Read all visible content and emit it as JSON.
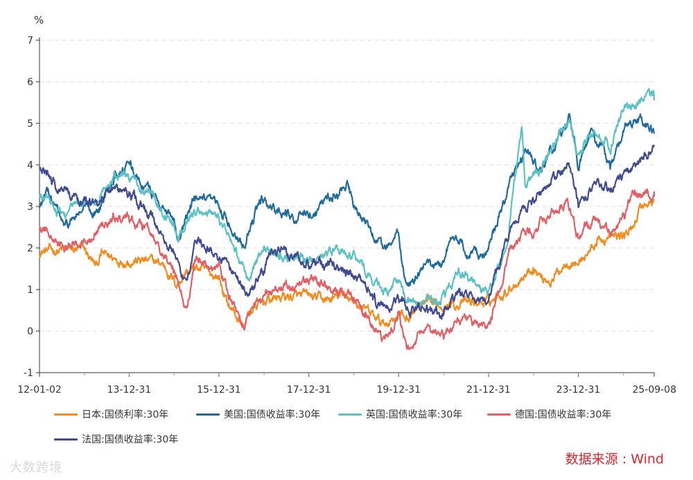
{
  "chart_data": {
    "type": "line",
    "ylabel": "%",
    "ylim": [
      -1,
      7
    ],
    "yticks": [
      "-1",
      "0",
      "1",
      "2",
      "3",
      "4",
      "5",
      "6",
      "7"
    ],
    "xlim": [
      "2012-01-02",
      "2025-09-08"
    ],
    "xticks": [
      {
        "label": "12-01-02",
        "date": "2012-01-02"
      },
      {
        "label": "13-12-31",
        "date": "2013-12-31"
      },
      {
        "label": "15-12-31",
        "date": "2015-12-31"
      },
      {
        "label": "17-12-31",
        "date": "2017-12-31"
      },
      {
        "label": "19-12-31",
        "date": "2019-12-31"
      },
      {
        "label": "21-12-31",
        "date": "2021-12-31"
      },
      {
        "label": "23-12-31",
        "date": "2023-12-31"
      },
      {
        "label": "25-09-08",
        "date": "2025-09-08"
      }
    ],
    "grid": true,
    "legend_position": "bottom",
    "source": "数据来源 : Wind",
    "series": [
      {
        "name": "日本:国债利率:30年",
        "color": "#f28c1e",
        "points": [
          [
            "2012-01-02",
            1.92
          ],
          [
            "2012-07-01",
            1.95
          ],
          [
            "2013-01-01",
            1.95
          ],
          [
            "2013-04-05",
            1.55
          ],
          [
            "2013-05-20",
            1.85
          ],
          [
            "2013-10-01",
            1.72
          ],
          [
            "2014-04-01",
            1.7
          ],
          [
            "2014-10-01",
            1.62
          ],
          [
            "2015-01-20",
            1.12
          ],
          [
            "2015-04-01",
            1.42
          ],
          [
            "2015-07-01",
            1.52
          ],
          [
            "2015-12-31",
            1.3
          ],
          [
            "2016-03-01",
            0.72
          ],
          [
            "2016-07-20",
            0.1
          ],
          [
            "2016-09-01",
            0.45
          ],
          [
            "2016-12-31",
            0.72
          ],
          [
            "2017-06-01",
            0.83
          ],
          [
            "2018-01-01",
            0.82
          ],
          [
            "2018-06-01",
            0.73
          ],
          [
            "2018-11-01",
            0.88
          ],
          [
            "2019-03-01",
            0.58
          ],
          [
            "2019-08-30",
            0.15
          ],
          [
            "2019-12-31",
            0.42
          ],
          [
            "2020-03-15",
            0.3
          ],
          [
            "2020-06-01",
            0.58
          ],
          [
            "2020-12-31",
            0.65
          ],
          [
            "2021-06-01",
            0.67
          ],
          [
            "2021-12-31",
            0.7
          ],
          [
            "2022-06-01",
            1.0
          ],
          [
            "2022-12-31",
            1.55
          ],
          [
            "2023-03-01",
            1.3
          ],
          [
            "2023-06-01",
            1.22
          ],
          [
            "2023-10-01",
            1.72
          ],
          [
            "2023-12-31",
            1.64
          ],
          [
            "2024-06-01",
            2.15
          ],
          [
            "2024-12-31",
            2.3
          ],
          [
            "2025-03-01",
            2.4
          ],
          [
            "2025-05-20",
            3.0
          ],
          [
            "2025-09-08",
            3.14
          ]
        ]
      },
      {
        "name": "美国:国债收益率:30年",
        "color": "#1f6c9c",
        "points": [
          [
            "2012-01-02",
            2.98
          ],
          [
            "2012-03-15",
            3.35
          ],
          [
            "2012-07-25",
            2.48
          ],
          [
            "2012-12-31",
            2.95
          ],
          [
            "2013-05-01",
            2.88
          ],
          [
            "2013-09-01",
            3.82
          ],
          [
            "2013-12-31",
            3.95
          ],
          [
            "2014-06-01",
            3.4
          ],
          [
            "2014-12-31",
            2.75
          ],
          [
            "2015-02-01",
            2.25
          ],
          [
            "2015-06-15",
            3.15
          ],
          [
            "2015-12-31",
            2.98
          ],
          [
            "2016-07-08",
            2.11
          ],
          [
            "2016-12-15",
            3.15
          ],
          [
            "2017-06-01",
            2.85
          ],
          [
            "2017-09-01",
            2.75
          ],
          [
            "2017-12-31",
            2.75
          ],
          [
            "2018-05-15",
            3.2
          ],
          [
            "2018-11-08",
            3.45
          ],
          [
            "2018-12-31",
            3.0
          ],
          [
            "2019-08-28",
            1.95
          ],
          [
            "2019-12-31",
            2.3
          ],
          [
            "2020-03-09",
            0.99
          ],
          [
            "2020-06-01",
            1.45
          ],
          [
            "2020-12-31",
            1.65
          ],
          [
            "2021-03-15",
            2.45
          ],
          [
            "2021-07-15",
            1.85
          ],
          [
            "2021-12-31",
            1.9
          ],
          [
            "2022-05-01",
            3.1
          ],
          [
            "2022-10-24",
            4.35
          ],
          [
            "2023-03-01",
            3.8
          ],
          [
            "2023-10-20",
            5.1
          ],
          [
            "2023-12-31",
            4.02
          ],
          [
            "2024-04-25",
            4.8
          ],
          [
            "2024-09-15",
            3.95
          ],
          [
            "2025-01-15",
            4.95
          ],
          [
            "2025-05-20",
            5.05
          ],
          [
            "2025-09-08",
            4.75
          ]
        ]
      },
      {
        "name": "英国:国债收益率:30年",
        "color": "#5cc1c3",
        "points": [
          [
            "2012-01-02",
            3.25
          ],
          [
            "2012-07-25",
            2.82
          ],
          [
            "2012-12-31",
            3.15
          ],
          [
            "2013-04-01",
            3.05
          ],
          [
            "2013-09-01",
            3.78
          ],
          [
            "2013-12-31",
            3.62
          ],
          [
            "2014-06-01",
            3.45
          ],
          [
            "2014-12-31",
            2.55
          ],
          [
            "2015-02-01",
            2.15
          ],
          [
            "2015-06-15",
            2.95
          ],
          [
            "2015-12-31",
            2.72
          ],
          [
            "2016-08-12",
            1.3
          ],
          [
            "2016-12-31",
            1.95
          ],
          [
            "2017-06-01",
            1.85
          ],
          [
            "2017-12-31",
            1.7
          ],
          [
            "2018-10-01",
            1.95
          ],
          [
            "2018-12-31",
            1.75
          ],
          [
            "2019-08-28",
            0.95
          ],
          [
            "2019-12-31",
            1.2
          ],
          [
            "2020-03-09",
            0.58
          ],
          [
            "2020-06-01",
            0.65
          ],
          [
            "2020-12-31",
            0.82
          ],
          [
            "2021-05-01",
            1.35
          ],
          [
            "2021-12-31",
            1.0
          ],
          [
            "2022-06-01",
            2.1
          ],
          [
            "2022-09-27",
            5.0
          ],
          [
            "2022-10-25",
            3.4
          ],
          [
            "2022-12-31",
            3.8
          ],
          [
            "2023-03-01",
            3.9
          ],
          [
            "2023-10-20",
            5.1
          ],
          [
            "2023-12-31",
            4.25
          ],
          [
            "2024-05-01",
            4.78
          ],
          [
            "2024-09-15",
            4.45
          ],
          [
            "2025-01-15",
            5.4
          ],
          [
            "2025-05-20",
            5.45
          ],
          [
            "2025-09-01",
            5.68
          ],
          [
            "2025-09-08",
            5.55
          ]
        ]
      },
      {
        "name": "德国:国债收益率:30年",
        "color": "#e06066",
        "points": [
          [
            "2012-01-02",
            2.5
          ],
          [
            "2012-07-25",
            1.92
          ],
          [
            "2012-12-31",
            2.25
          ],
          [
            "2013-04-01",
            2.35
          ],
          [
            "2013-09-01",
            2.75
          ],
          [
            "2013-12-31",
            2.72
          ],
          [
            "2014-06-01",
            2.38
          ],
          [
            "2014-12-31",
            1.45
          ],
          [
            "2015-04-17",
            0.5
          ],
          [
            "2015-06-15",
            1.75
          ],
          [
            "2015-12-31",
            1.5
          ],
          [
            "2016-07-08",
            0.05
          ],
          [
            "2016-12-31",
            0.95
          ],
          [
            "2017-06-01",
            1.05
          ],
          [
            "2017-12-31",
            1.25
          ],
          [
            "2018-06-01",
            1.1
          ],
          [
            "2018-12-31",
            0.85
          ],
          [
            "2019-08-16",
            -0.25
          ],
          [
            "2019-12-31",
            0.35
          ],
          [
            "2020-03-09",
            -0.48
          ],
          [
            "2020-06-01",
            -0.05
          ],
          [
            "2020-12-31",
            -0.15
          ],
          [
            "2021-05-01",
            0.35
          ],
          [
            "2021-12-31",
            0.05
          ],
          [
            "2022-06-15",
            1.85
          ],
          [
            "2022-10-20",
            2.35
          ],
          [
            "2022-12-31",
            2.3
          ],
          [
            "2023-03-01",
            2.6
          ],
          [
            "2023-10-03",
            3.2
          ],
          [
            "2023-12-31",
            2.25
          ],
          [
            "2024-05-01",
            2.7
          ],
          [
            "2024-09-15",
            2.4
          ],
          [
            "2025-01-15",
            2.8
          ],
          [
            "2025-03-15",
            3.2
          ],
          [
            "2025-09-08",
            3.36
          ]
        ]
      },
      {
        "name": "法国:国债收益率:30年",
        "color": "#3f4b8e",
        "points": [
          [
            "2012-01-02",
            3.95
          ],
          [
            "2012-06-01",
            3.45
          ],
          [
            "2012-12-31",
            3.05
          ],
          [
            "2013-04-01",
            3.1
          ],
          [
            "2013-09-01",
            3.45
          ],
          [
            "2013-12-31",
            3.3
          ],
          [
            "2014-06-01",
            2.85
          ],
          [
            "2014-12-31",
            1.85
          ],
          [
            "2015-04-17",
            0.95
          ],
          [
            "2015-06-15",
            2.25
          ],
          [
            "2015-12-31",
            1.85
          ],
          [
            "2016-09-01",
            0.85
          ],
          [
            "2016-12-31",
            1.5
          ],
          [
            "2017-03-01",
            2.05
          ],
          [
            "2017-12-31",
            1.65
          ],
          [
            "2018-06-01",
            1.6
          ],
          [
            "2018-12-31",
            1.35
          ],
          [
            "2019-08-16",
            0.55
          ],
          [
            "2019-12-31",
            0.85
          ],
          [
            "2020-03-09",
            0.55
          ],
          [
            "2020-06-01",
            0.62
          ],
          [
            "2020-12-31",
            0.35
          ],
          [
            "2021-05-01",
            0.9
          ],
          [
            "2021-12-31",
            0.7
          ],
          [
            "2022-06-15",
            2.35
          ],
          [
            "2022-10-20",
            2.95
          ],
          [
            "2022-12-31",
            3.1
          ],
          [
            "2023-03-01",
            3.25
          ],
          [
            "2023-10-03",
            4.05
          ],
          [
            "2023-12-31",
            3.05
          ],
          [
            "2024-05-01",
            3.5
          ],
          [
            "2024-09-15",
            3.4
          ],
          [
            "2025-01-15",
            3.75
          ],
          [
            "2025-05-20",
            4.05
          ],
          [
            "2025-09-08",
            4.45
          ]
        ]
      }
    ]
  },
  "watermark": "大数跨境"
}
